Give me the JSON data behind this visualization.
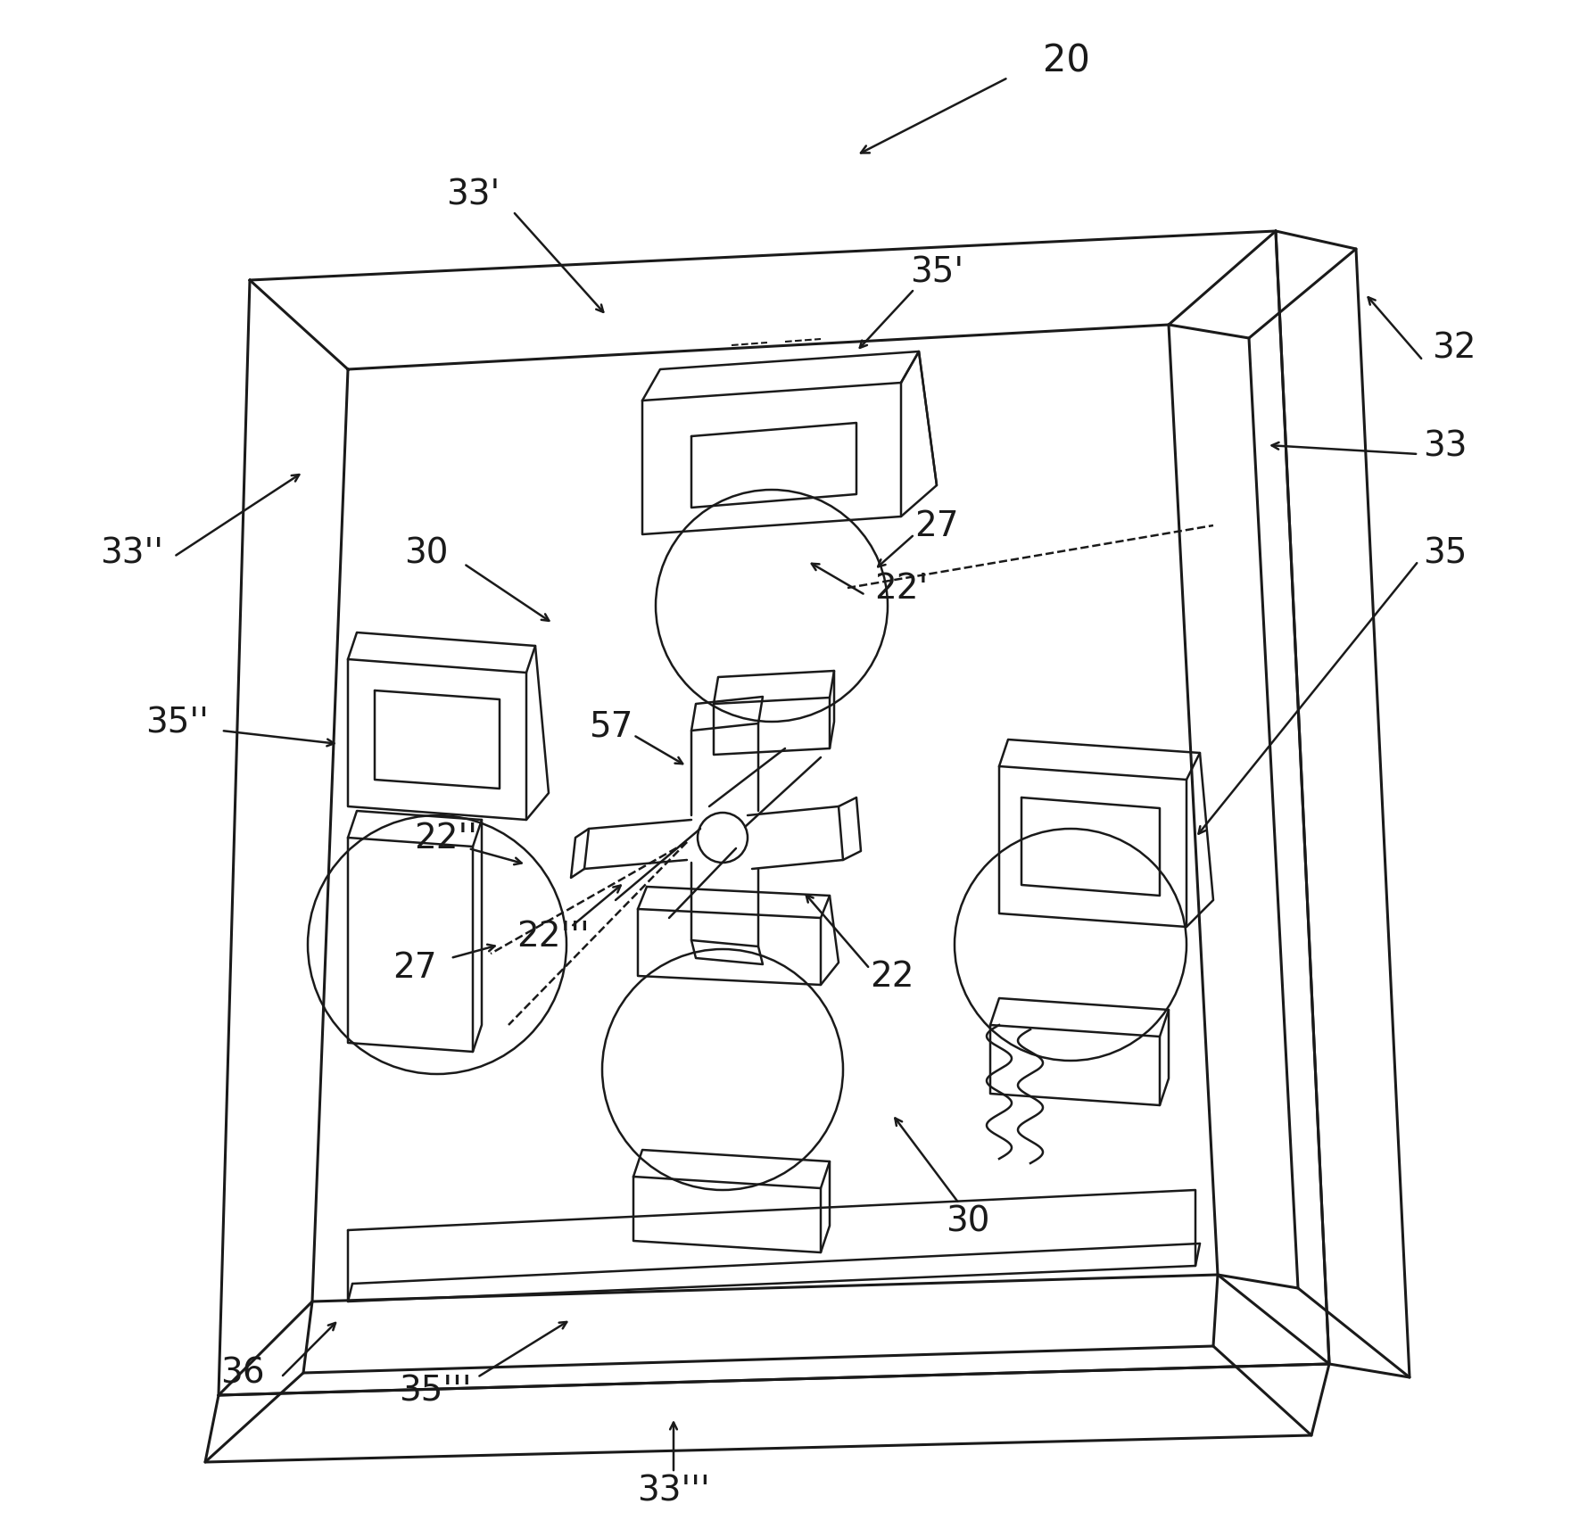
{
  "bg_color": "#ffffff",
  "line_color": "#1a1a1a",
  "line_width": 1.8,
  "frame_lw": 2.2,
  "fig_width": 17.61,
  "fig_height": 17.24,
  "dpi": 100
}
